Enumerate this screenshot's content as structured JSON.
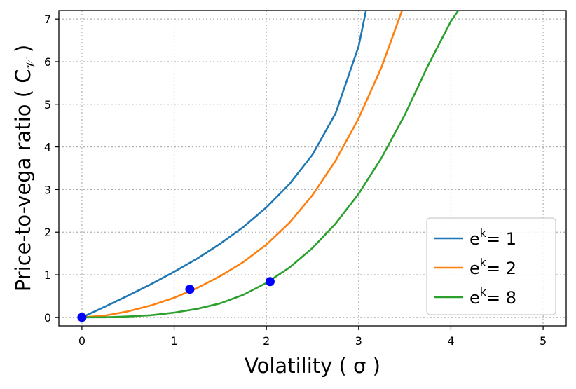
{
  "chart_data": {
    "type": "line",
    "xlabel": "Volatility ( σ )",
    "ylabel": "Price-to-vega ratio ( C_𝒱 )",
    "xlim": [
      -0.25,
      5.25
    ],
    "ylim": [
      -0.2,
      7.2
    ],
    "xticks": [
      0,
      1,
      2,
      3,
      4,
      5
    ],
    "yticks": [
      0,
      1,
      2,
      3,
      4,
      5,
      6,
      7
    ],
    "grid": true,
    "grid_style": "dotted",
    "legend_position": "lower-right",
    "series": [
      {
        "name": "e^k = 1",
        "legend_base": "e",
        "legend_sup": "k",
        "legend_tail": "= 1",
        "color": "#1f77b4",
        "x": [
          0,
          0.25,
          0.5,
          0.75,
          1.0,
          1.25,
          1.5,
          1.75,
          2.0,
          2.25,
          2.5,
          2.75,
          3.0,
          3.08
        ],
        "y": [
          0,
          0.25,
          0.51,
          0.78,
          1.07,
          1.38,
          1.73,
          2.12,
          2.58,
          3.13,
          3.82,
          4.79,
          6.36,
          7.2
        ]
      },
      {
        "name": "e^k = 2",
        "legend_base": "e",
        "legend_sup": "k",
        "legend_tail": "= 2",
        "color": "#ff7f0e",
        "x": [
          0,
          0.25,
          0.5,
          0.75,
          1.0,
          1.25,
          1.5,
          1.75,
          2.0,
          2.25,
          2.5,
          2.75,
          3.0,
          3.25,
          3.47
        ],
        "y": [
          0,
          0.04,
          0.14,
          0.28,
          0.46,
          0.69,
          0.97,
          1.3,
          1.71,
          2.22,
          2.87,
          3.68,
          4.67,
          5.88,
          7.2
        ]
      },
      {
        "name": "e^k = 8",
        "legend_base": "e",
        "legend_sup": "k",
        "legend_tail": "= 8",
        "color": "#2ca02c",
        "x": [
          0,
          0.25,
          0.5,
          0.75,
          1.0,
          1.25,
          1.5,
          1.75,
          2.0,
          2.25,
          2.5,
          2.75,
          3.0,
          3.25,
          3.5,
          3.75,
          4.0,
          4.08
        ],
        "y": [
          0,
          0.0,
          0.02,
          0.05,
          0.11,
          0.2,
          0.33,
          0.53,
          0.81,
          1.17,
          1.63,
          2.2,
          2.9,
          3.75,
          4.75,
          5.9,
          6.95,
          7.2
        ]
      }
    ],
    "markers": {
      "color": "#0000ff",
      "points": [
        {
          "x": 0,
          "y": 0
        },
        {
          "x": 1.17,
          "y": 0.66
        },
        {
          "x": 2.04,
          "y": 0.84
        }
      ]
    }
  }
}
